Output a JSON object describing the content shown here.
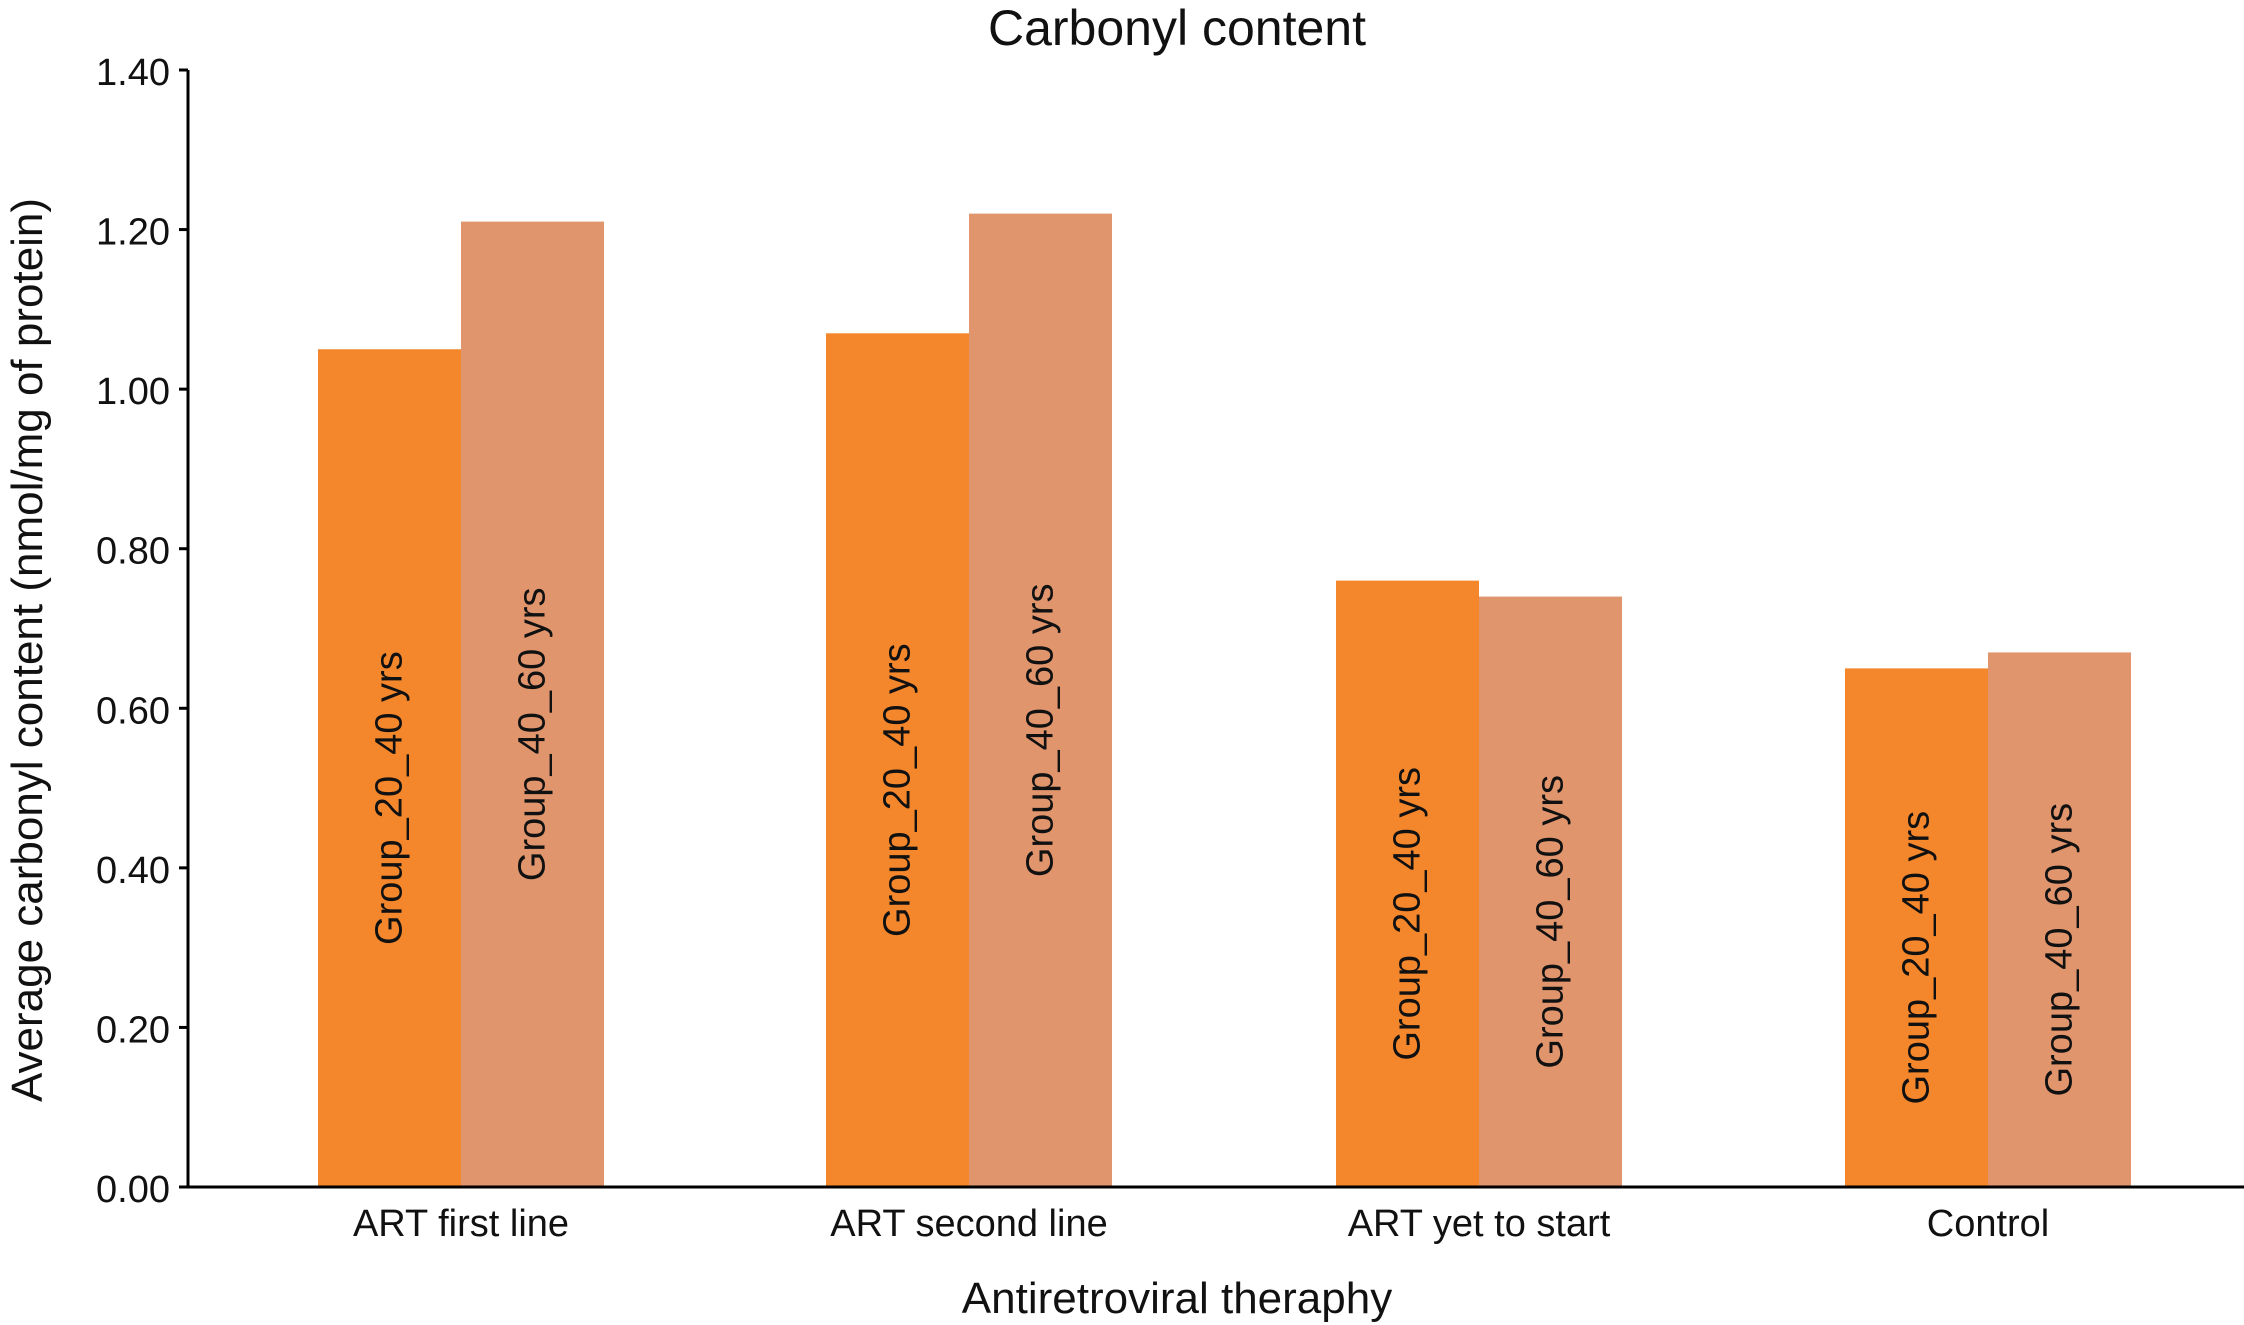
{
  "chart_data": {
    "type": "bar",
    "title": "Carbonyl content",
    "xlabel": "Antiretroviral theraphy",
    "ylabel": "Average carbonyl content (nmol/mg of protein)",
    "categories": [
      "ART first line",
      "ART second line",
      "ART yet to start",
      "Control"
    ],
    "ylim": [
      0,
      1.4
    ],
    "yticks": [
      "0.00",
      "0.20",
      "0.40",
      "0.60",
      "0.80",
      "1.00",
      "1.20",
      "1.40"
    ],
    "grid": false,
    "series": [
      {
        "name": "Group_20_40 yrs",
        "color": "#F4862C",
        "values": [
          1.05,
          1.07,
          0.76,
          0.65
        ]
      },
      {
        "name": "Group_40_60 yrs",
        "color": "#E0956D",
        "values": [
          1.21,
          1.22,
          0.74,
          0.67
        ]
      }
    ]
  }
}
